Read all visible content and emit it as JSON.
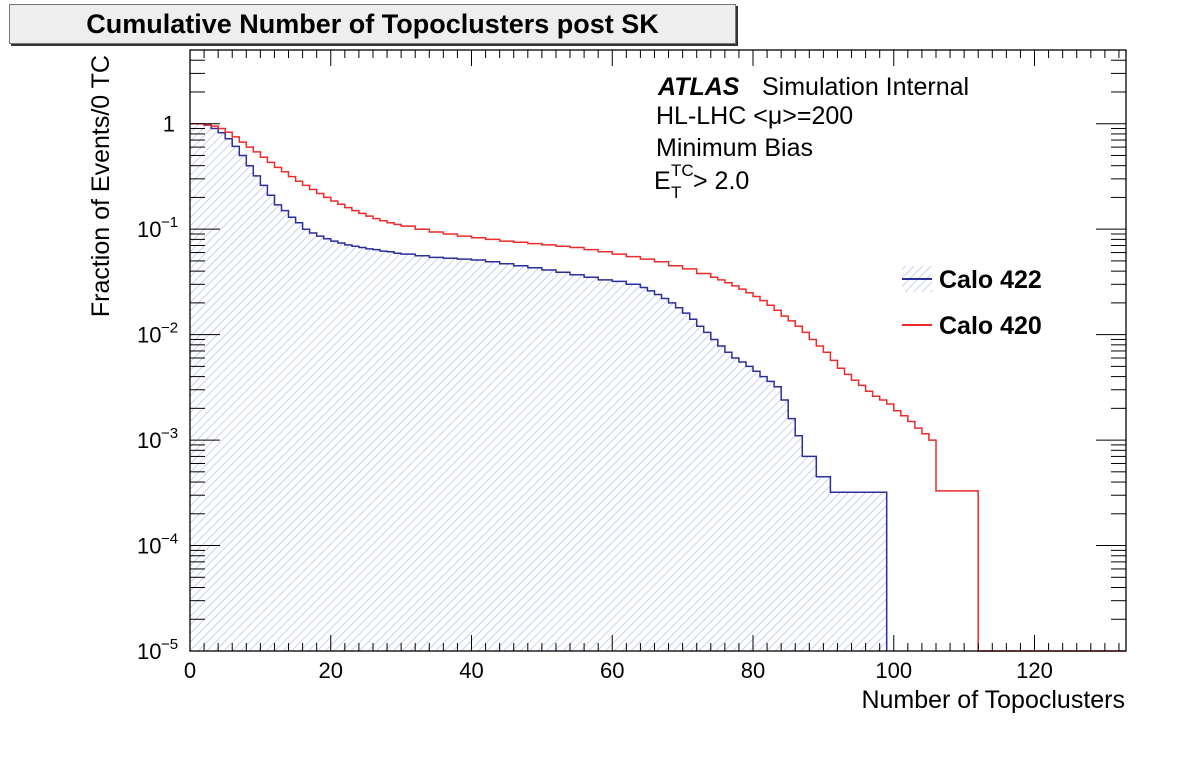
{
  "chart_data": {
    "type": "line",
    "title": "Cumulative Number of Topoclusters post SK",
    "xlabel": "Number of Topoclusters",
    "ylabel": "Fraction of Events/0 TC",
    "xlim": [
      0,
      133
    ],
    "ylim": [
      1e-05,
      5
    ],
    "yscale": "log",
    "x_ticks": [
      0,
      20,
      40,
      60,
      80,
      100,
      120
    ],
    "y_ticks": [
      {
        "value": 1e-05,
        "base": "10",
        "exp": "−5"
      },
      {
        "value": 0.0001,
        "base": "10",
        "exp": "−4"
      },
      {
        "value": 0.001,
        "base": "10",
        "exp": "−3"
      },
      {
        "value": 0.01,
        "base": "10",
        "exp": "−2"
      },
      {
        "value": 0.1,
        "base": "10",
        "exp": "−1"
      },
      {
        "value": 1,
        "base": "1",
        "exp": ""
      }
    ],
    "annotations": {
      "atlas": "ATLAS",
      "simulation": "Simulation Internal",
      "line2": "HL-LHC <μ>=200",
      "line3": "Minimum Bias",
      "line4_base": "E",
      "line4_sup": "TC",
      "line4_sub": "T",
      "line4_rest": " > 2.0"
    },
    "legend_position": "right",
    "series": [
      {
        "name": "Calo 422",
        "color": "#2a2f9c",
        "fill": "hatched",
        "x": [
          0,
          1,
          2,
          3,
          4,
          5,
          6,
          7,
          8,
          9,
          10,
          11,
          12,
          13,
          14,
          15,
          16,
          17,
          18,
          19,
          20,
          21,
          22,
          23,
          24,
          25,
          26,
          27,
          28,
          29,
          30,
          32,
          34,
          36,
          38,
          40,
          42,
          44,
          46,
          48,
          50,
          52,
          54,
          56,
          58,
          60,
          62,
          64,
          65,
          66,
          67,
          68,
          69,
          70,
          71,
          72,
          73,
          74,
          75,
          76,
          77,
          78,
          79,
          80,
          81,
          82,
          83,
          84,
          85,
          86,
          87,
          88,
          89,
          90,
          91,
          92,
          93,
          94,
          95,
          96,
          97,
          98
        ],
        "values": [
          1,
          1,
          0.97,
          0.9,
          0.82,
          0.72,
          0.61,
          0.5,
          0.4,
          0.32,
          0.26,
          0.21,
          0.17,
          0.15,
          0.13,
          0.115,
          0.1,
          0.092,
          0.086,
          0.081,
          0.077,
          0.074,
          0.071,
          0.069,
          0.067,
          0.065,
          0.064,
          0.062,
          0.061,
          0.059,
          0.058,
          0.056,
          0.054,
          0.053,
          0.052,
          0.051,
          0.049,
          0.047,
          0.045,
          0.043,
          0.041,
          0.039,
          0.037,
          0.035,
          0.033,
          0.032,
          0.03,
          0.028,
          0.026,
          0.024,
          0.022,
          0.02,
          0.018,
          0.016,
          0.014,
          0.012,
          0.0105,
          0.009,
          0.0078,
          0.0068,
          0.006,
          0.0055,
          0.005,
          0.0045,
          0.004,
          0.0036,
          0.0032,
          0.0024,
          0.0016,
          0.0011,
          0.0007,
          0.0007,
          0.00045,
          0.00045,
          0.00032,
          0.00032,
          0.00032,
          0.00032,
          0.00032,
          0.00032,
          0.00032,
          0.00032
        ]
      },
      {
        "name": "Calo 420",
        "color": "#ee2b2b",
        "fill": "none",
        "x": [
          0,
          1,
          2,
          3,
          4,
          5,
          6,
          7,
          8,
          9,
          10,
          11,
          12,
          13,
          14,
          15,
          16,
          17,
          18,
          19,
          20,
          21,
          22,
          23,
          24,
          25,
          26,
          27,
          28,
          29,
          30,
          32,
          34,
          36,
          38,
          40,
          42,
          44,
          46,
          48,
          50,
          52,
          54,
          56,
          58,
          60,
          62,
          64,
          66,
          68,
          70,
          72,
          74,
          75,
          76,
          77,
          78,
          79,
          80,
          81,
          82,
          83,
          84,
          85,
          86,
          87,
          88,
          89,
          90,
          91,
          92,
          93,
          94,
          95,
          96,
          97,
          98,
          99,
          100,
          101,
          102,
          103,
          104,
          105,
          106,
          107,
          108,
          109,
          110,
          111
        ],
        "values": [
          1,
          1,
          0.98,
          0.95,
          0.9,
          0.83,
          0.75,
          0.67,
          0.6,
          0.54,
          0.48,
          0.43,
          0.385,
          0.35,
          0.315,
          0.285,
          0.26,
          0.238,
          0.218,
          0.2,
          0.185,
          0.172,
          0.16,
          0.15,
          0.141,
          0.133,
          0.126,
          0.12,
          0.115,
          0.111,
          0.107,
          0.1,
          0.094,
          0.09,
          0.086,
          0.083,
          0.08,
          0.077,
          0.075,
          0.073,
          0.071,
          0.069,
          0.067,
          0.064,
          0.061,
          0.058,
          0.055,
          0.052,
          0.049,
          0.045,
          0.042,
          0.038,
          0.035,
          0.033,
          0.031,
          0.029,
          0.027,
          0.025,
          0.023,
          0.021,
          0.019,
          0.017,
          0.015,
          0.0135,
          0.012,
          0.0105,
          0.009,
          0.0078,
          0.0068,
          0.0057,
          0.0048,
          0.0042,
          0.0037,
          0.0033,
          0.0029,
          0.0026,
          0.0024,
          0.0022,
          0.0019,
          0.0017,
          0.0015,
          0.0013,
          0.00115,
          0.001,
          0.00033,
          0.00033,
          0.00033,
          0.00033,
          0.00033,
          0.00033
        ]
      }
    ]
  }
}
